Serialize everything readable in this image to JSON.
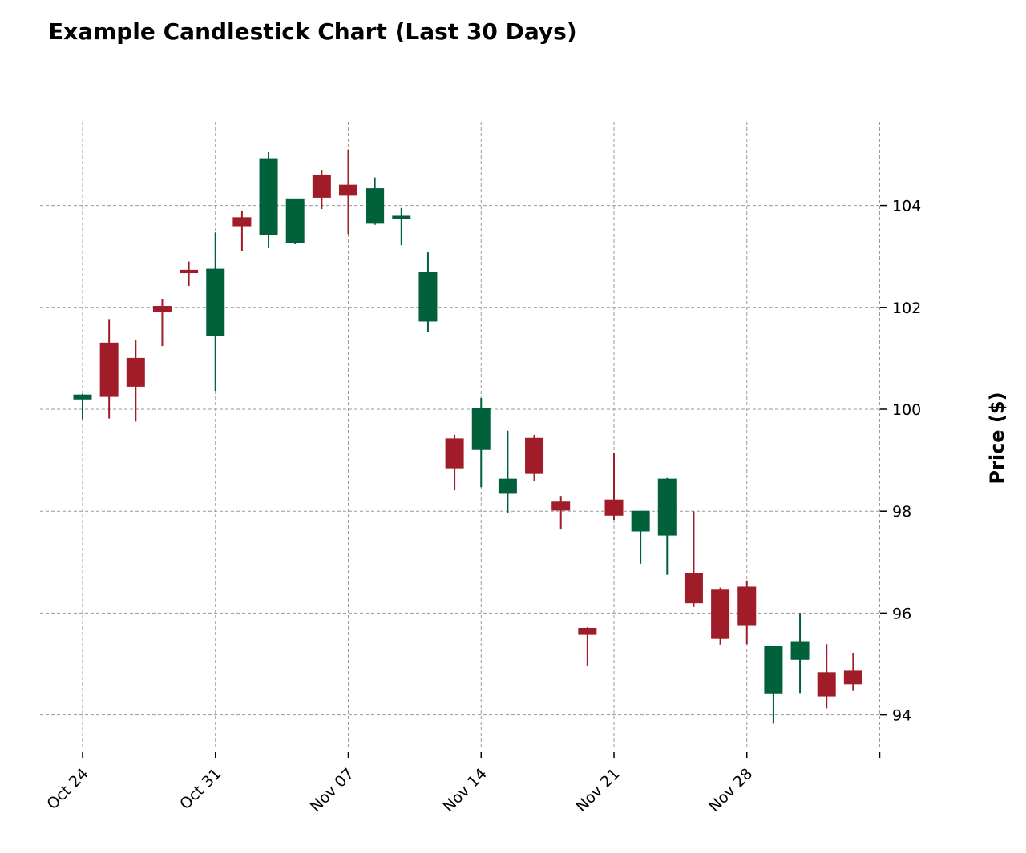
{
  "chart_data": {
    "type": "candlestick",
    "title": "Example Candlestick Chart (Last 30 Days)",
    "ylabel": "Price ($)",
    "xlabel": "",
    "ylim": [
      93.3,
      105.7
    ],
    "y_ticks": [
      "94",
      "96",
      "98",
      "100",
      "102",
      "104"
    ],
    "x_ticks": [
      "Oct 24",
      "Oct 31",
      "Nov 07",
      "Nov 14",
      "Nov 21",
      "Nov 28",
      ""
    ],
    "grid": true,
    "colors": {
      "up": "#00613a",
      "down": "#a01c28"
    },
    "candles": [
      {
        "o": 100.2,
        "h": 100.3,
        "l": 99.8,
        "c": 100.28
      },
      {
        "o": 101.3,
        "h": 101.77,
        "l": 99.82,
        "c": 100.25
      },
      {
        "o": 101.0,
        "h": 101.35,
        "l": 99.76,
        "c": 100.45
      },
      {
        "o": 102.02,
        "h": 102.17,
        "l": 101.24,
        "c": 101.92
      },
      {
        "o": 102.73,
        "h": 102.9,
        "l": 102.42,
        "c": 102.68
      },
      {
        "o": 101.44,
        "h": 103.47,
        "l": 100.36,
        "c": 102.75
      },
      {
        "o": 103.76,
        "h": 103.9,
        "l": 103.11,
        "c": 103.6
      },
      {
        "o": 103.43,
        "h": 105.05,
        "l": 103.16,
        "c": 104.92
      },
      {
        "o": 103.27,
        "h": 104.13,
        "l": 103.24,
        "c": 104.13
      },
      {
        "o": 104.6,
        "h": 104.7,
        "l": 103.93,
        "c": 104.16
      },
      {
        "o": 104.4,
        "h": 105.1,
        "l": 103.44,
        "c": 104.2
      },
      {
        "o": 103.65,
        "h": 104.55,
        "l": 103.62,
        "c": 104.33
      },
      {
        "o": 103.74,
        "h": 103.95,
        "l": 103.22,
        "c": 103.79
      },
      {
        "o": 101.73,
        "h": 103.08,
        "l": 101.51,
        "c": 102.69
      },
      {
        "o": 99.42,
        "h": 99.5,
        "l": 98.41,
        "c": 98.85
      },
      {
        "o": 99.21,
        "h": 100.22,
        "l": 98.47,
        "c": 100.02
      },
      {
        "o": 98.35,
        "h": 99.58,
        "l": 97.97,
        "c": 98.63
      },
      {
        "o": 99.43,
        "h": 99.5,
        "l": 98.6,
        "c": 98.74
      },
      {
        "o": 98.18,
        "h": 98.3,
        "l": 97.64,
        "c": 98.02
      },
      {
        "o": 95.7,
        "h": 95.72,
        "l": 94.97,
        "c": 95.58
      },
      {
        "o": 98.22,
        "h": 99.15,
        "l": 97.83,
        "c": 97.92
      },
      {
        "o": 97.61,
        "h": 98.0,
        "l": 96.97,
        "c": 98.0
      },
      {
        "o": 97.53,
        "h": 98.65,
        "l": 96.75,
        "c": 98.63
      },
      {
        "o": 96.78,
        "h": 98.0,
        "l": 96.12,
        "c": 96.2
      },
      {
        "o": 96.45,
        "h": 96.5,
        "l": 95.38,
        "c": 95.5
      },
      {
        "o": 96.51,
        "h": 96.64,
        "l": 95.39,
        "c": 95.77
      },
      {
        "o": 94.43,
        "h": 95.35,
        "l": 93.83,
        "c": 95.35
      },
      {
        "o": 95.09,
        "h": 96.0,
        "l": 94.43,
        "c": 95.44
      },
      {
        "o": 94.83,
        "h": 95.39,
        "l": 94.13,
        "c": 94.37
      },
      {
        "o": 94.86,
        "h": 95.22,
        "l": 94.47,
        "c": 94.61
      }
    ]
  }
}
